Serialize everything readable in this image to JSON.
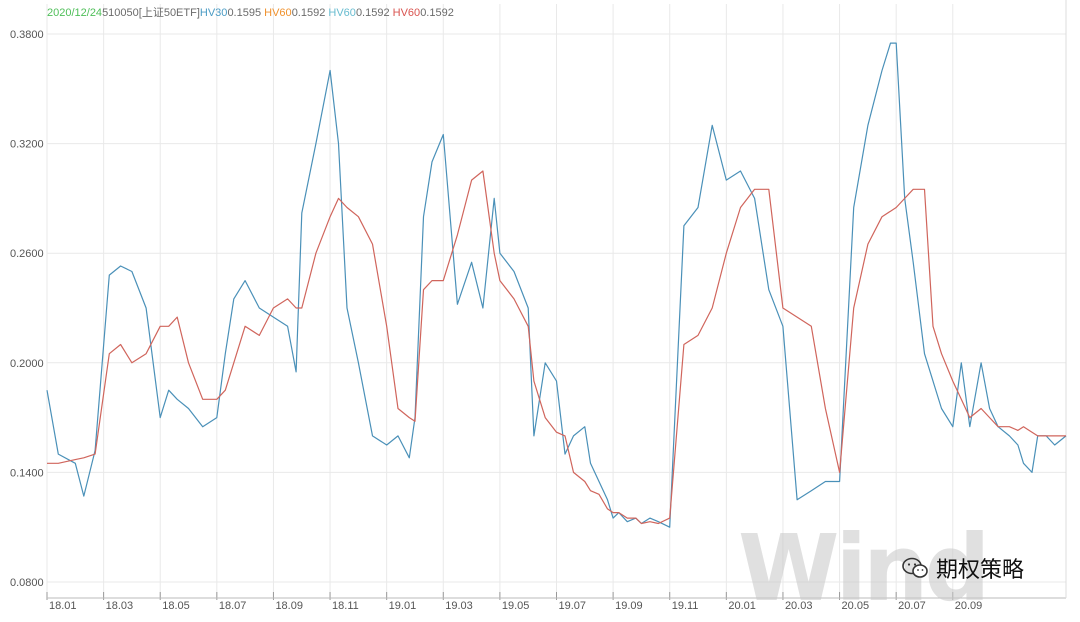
{
  "legend": [
    {
      "text": "2020/12/24",
      "color": "#4fbf59"
    },
    {
      "text": "510050[上证50ETF]",
      "color": "#6b6b6b"
    },
    {
      "text": "HV30",
      "color": "#4a9bc4"
    },
    {
      "text": "0.1595",
      "color": "#6b6b6b"
    },
    {
      "text": "HV60",
      "color": "#f0922e"
    },
    {
      "text": "0.1592",
      "color": "#6b6b6b"
    },
    {
      "text": "HV60",
      "color": "#68bcd0"
    },
    {
      "text": "0.1592",
      "color": "#6b6b6b"
    },
    {
      "text": "HV60",
      "color": "#d9534f"
    },
    {
      "text": "0.1592",
      "color": "#6b6b6b"
    }
  ],
  "watermark": "Wind",
  "brand": {
    "text": "期权策略",
    "icon": "wechat-icon"
  },
  "colors": {
    "hv30": "#4a90b8",
    "hv60": "#d0655c",
    "grid": "#e9e9e9",
    "axis": "#555555"
  },
  "chart_data": {
    "type": "line",
    "ylim": [
      0.08,
      0.38
    ],
    "yticks": [
      "0.3800",
      "0.3200",
      "0.2600",
      "0.2000",
      "0.1400",
      "0.0800"
    ],
    "yticks_values": [
      0.38,
      0.32,
      0.26,
      0.2,
      0.14,
      0.08
    ],
    "xticks": [
      "18.01",
      "18.03",
      "18.05",
      "18.07",
      "18.09",
      "18.11",
      "19.01",
      "19.03",
      "19.05",
      "19.07",
      "19.09",
      "19.11",
      "20.01",
      "20.03",
      "20.05",
      "20.07",
      "20.09"
    ],
    "x_index": [
      0,
      0.4,
      1.0,
      1.3,
      1.7,
      2.2,
      2.6,
      3.0,
      3.5,
      4.0,
      4.3,
      4.6,
      5.0,
      5.5,
      6.0,
      6.3,
      6.6,
      7.0,
      7.5,
      8.0,
      8.5,
      8.8,
      9.0,
      9.5,
      10.0,
      10.3,
      10.6,
      11.0,
      11.5,
      12.0,
      12.4,
      12.8,
      13.0,
      13.3,
      13.6,
      14.0,
      14.5,
      15.0,
      15.4,
      15.8,
      16.0,
      16.5,
      17.0,
      17.2,
      17.6,
      18.0,
      18.3,
      18.6,
      19.0,
      19.2,
      19.5,
      19.8,
      20.0,
      20.2,
      20.5,
      20.8,
      21.0,
      21.3,
      21.6,
      22.0,
      22.5,
      23.0,
      23.5,
      24.0,
      24.5,
      25.0,
      25.5,
      26.0,
      26.5,
      27.0,
      27.5,
      28.0,
      28.5,
      29.0,
      29.5,
      29.8,
      30.0,
      30.3,
      30.6,
      31.0,
      31.3,
      31.6,
      32.0,
      32.3,
      32.6,
      33.0,
      33.3,
      33.6,
      34.0,
      34.3,
      34.5,
      34.8,
      35.0,
      35.3,
      35.6,
      36.0
    ],
    "series": [
      {
        "name": "HV30",
        "values": [
          0.185,
          0.15,
          0.145,
          0.127,
          0.152,
          0.248,
          0.253,
          0.25,
          0.23,
          0.17,
          0.185,
          0.18,
          0.175,
          0.165,
          0.17,
          0.205,
          0.235,
          0.245,
          0.23,
          0.225,
          0.22,
          0.195,
          0.282,
          0.32,
          0.36,
          0.32,
          0.23,
          0.2,
          0.16,
          0.155,
          0.16,
          0.148,
          0.17,
          0.28,
          0.31,
          0.325,
          0.232,
          0.255,
          0.23,
          0.29,
          0.26,
          0.25,
          0.23,
          0.16,
          0.2,
          0.19,
          0.15,
          0.16,
          0.165,
          0.145,
          0.135,
          0.125,
          0.115,
          0.118,
          0.113,
          0.115,
          0.112,
          0.115,
          0.113,
          0.11,
          0.275,
          0.285,
          0.33,
          0.3,
          0.305,
          0.29,
          0.24,
          0.22,
          0.125,
          0.13,
          0.135,
          0.135,
          0.285,
          0.33,
          0.36,
          0.375,
          0.375,
          0.29,
          0.255,
          0.205,
          0.19,
          0.175,
          0.165,
          0.2,
          0.165,
          0.2,
          0.175,
          0.165,
          0.16,
          0.155,
          0.145,
          0.14,
          0.16,
          0.16,
          0.155,
          0.16
        ]
      },
      {
        "name": "HV60",
        "values": [
          0.145,
          0.145,
          0.147,
          0.148,
          0.15,
          0.205,
          0.21,
          0.2,
          0.205,
          0.22,
          0.22,
          0.225,
          0.2,
          0.18,
          0.18,
          0.185,
          0.2,
          0.22,
          0.215,
          0.23,
          0.235,
          0.23,
          0.23,
          0.26,
          0.28,
          0.29,
          0.285,
          0.28,
          0.265,
          0.22,
          0.175,
          0.17,
          0.168,
          0.24,
          0.245,
          0.245,
          0.27,
          0.3,
          0.305,
          0.26,
          0.245,
          0.235,
          0.22,
          0.19,
          0.17,
          0.162,
          0.16,
          0.14,
          0.135,
          0.13,
          0.128,
          0.12,
          0.118,
          0.118,
          0.115,
          0.115,
          0.112,
          0.113,
          0.112,
          0.115,
          0.21,
          0.215,
          0.23,
          0.26,
          0.285,
          0.295,
          0.295,
          0.23,
          0.225,
          0.22,
          0.175,
          0.14,
          0.23,
          0.265,
          0.28,
          0.283,
          0.285,
          0.29,
          0.295,
          0.295,
          0.22,
          0.205,
          0.19,
          0.18,
          0.17,
          0.175,
          0.17,
          0.165,
          0.165,
          0.163,
          0.165,
          0.162,
          0.16,
          0.16,
          0.16,
          0.16
        ]
      }
    ]
  }
}
